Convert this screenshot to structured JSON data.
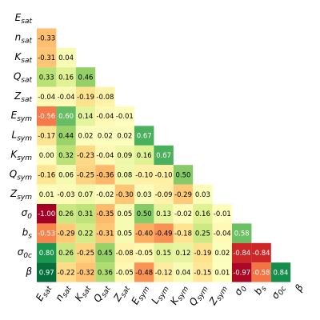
{
  "chart_data": {
    "type": "heatmap",
    "labels": [
      {
        "symbol": "E",
        "subscript": "sat"
      },
      {
        "symbol": "n",
        "subscript": "sat"
      },
      {
        "symbol": "K",
        "subscript": "sat"
      },
      {
        "symbol": "Q",
        "subscript": "sat"
      },
      {
        "symbol": "Z",
        "subscript": "sat"
      },
      {
        "symbol": "E",
        "subscript": "sym"
      },
      {
        "symbol": "L",
        "subscript": "sym"
      },
      {
        "symbol": "K",
        "subscript": "sym"
      },
      {
        "symbol": "Q",
        "subscript": "sym"
      },
      {
        "symbol": "Z",
        "subscript": "sym"
      },
      {
        "symbol": "σ",
        "subscript": "0"
      },
      {
        "symbol": "b",
        "subscript": "s"
      },
      {
        "symbol": "σ",
        "subscript": "0c"
      },
      {
        "symbol": "β"
      }
    ],
    "values": [
      [],
      [
        -0.33
      ],
      [
        -0.31,
        0.04
      ],
      [
        0.33,
        0.16,
        0.46
      ],
      [
        -0.04,
        -0.04,
        -0.19,
        -0.08
      ],
      [
        -0.56,
        0.6,
        0.14,
        -0.04,
        -0.01
      ],
      [
        -0.17,
        0.44,
        0.02,
        0.02,
        0.02,
        0.67
      ],
      [
        0,
        0.32,
        -0.23,
        -0.04,
        0.09,
        0.16,
        0.67
      ],
      [
        -0.16,
        0.06,
        -0.25,
        -0.36,
        0.08,
        -0.1,
        -0.1,
        0.5
      ],
      [
        0.01,
        -0.03,
        0.07,
        -0.02,
        -0.3,
        0.03,
        -0.09,
        -0.29,
        0.03
      ],
      [
        -1,
        0.26,
        0.31,
        -0.35,
        0.05,
        0.5,
        0.13,
        -0.02,
        0.16,
        -0.01
      ],
      [
        -0.53,
        -0.29,
        0.22,
        -0.31,
        0.05,
        -0.4,
        -0.49,
        -0.18,
        0.25,
        -0.04,
        0.58
      ],
      [
        0.8,
        0.26,
        -0.25,
        0.45,
        -0.08,
        -0.05,
        0.15,
        0.12,
        -0.19,
        0.02,
        -0.84,
        -0.84
      ],
      [
        0.97,
        -0.22,
        -0.32,
        0.36,
        -0.05,
        -0.48,
        -0.12,
        0.04,
        -0.15,
        0.01,
        -0.97,
        -0.58,
        0.84
      ]
    ],
    "value_labels": [
      [],
      [
        "-0.33"
      ],
      [
        "-0.31",
        "0.04"
      ],
      [
        "0.33",
        "0.16",
        "0.46"
      ],
      [
        "-0.04",
        "-0.04",
        "-0.19",
        "-0.08"
      ],
      [
        "-0.56",
        "0.60",
        "0.14",
        "-0.04",
        "-0.01"
      ],
      [
        "-0.17",
        "0.44",
        "0.02",
        "0.02",
        "0.02",
        "0.67"
      ],
      [
        "0.00",
        "0.32",
        "-0.23",
        "-0.04",
        "0.09",
        "0.16",
        "0.67"
      ],
      [
        "-0.16",
        "0.06",
        "-0.25",
        "-0.36",
        "0.08",
        "-0.10",
        "-0.10",
        "0.50"
      ],
      [
        "0.01",
        "-0.03",
        "0.07",
        "-0.02",
        "-0.30",
        "0.03",
        "-0.09",
        "-0.29",
        "0.03"
      ],
      [
        "-1.00",
        "0.26",
        "0.31",
        "-0.35",
        "0.05",
        "0.50",
        "0.13",
        "-0.02",
        "0.16",
        "-0.01"
      ],
      [
        "-0.53",
        "-0.29",
        "0.22",
        "-0.31",
        "0.05",
        "-0.40",
        "-0.49",
        "-0.18",
        "0.25",
        "-0.04",
        "0.58"
      ],
      [
        "0.80",
        "0.26",
        "-0.25",
        "0.45",
        "-0.08",
        "-0.05",
        "0.15",
        "0.12",
        "-0.19",
        "0.02",
        "-0.84",
        "-0.84"
      ],
      [
        "0.97",
        "-0.22",
        "-0.32",
        "0.36",
        "-0.05",
        "-0.48",
        "-0.12",
        "0.04",
        "-0.15",
        "0.01",
        "-0.97",
        "-0.58",
        "0.84"
      ]
    ],
    "vlim": [
      -1,
      1
    ],
    "colormap": [
      "#a50026",
      "#d73027",
      "#f46d43",
      "#fdae61",
      "#fee08b",
      "#ffffbf",
      "#d9ef8b",
      "#a6d96a",
      "#66bd63",
      "#1a9850",
      "#006837"
    ]
  }
}
